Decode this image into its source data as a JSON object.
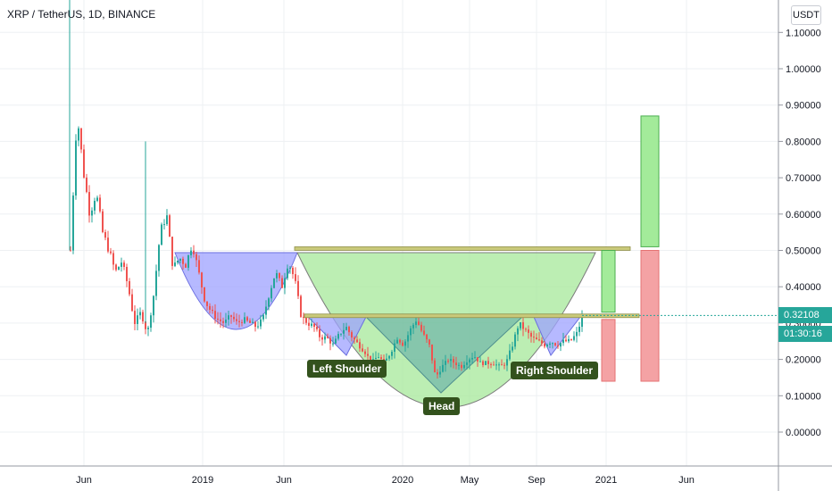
{
  "header": {
    "title": "XRP / TetherUS, 1D, BINANCE",
    "currency_badge": "USDT"
  },
  "price_scale": {
    "ticks": [
      "1.10000",
      "1.00000",
      "0.90000",
      "0.80000",
      "0.70000",
      "0.60000",
      "0.50000",
      "0.40000",
      "0.30000",
      "0.20000",
      "0.10000",
      "0.00000"
    ],
    "last_price": "0.32108",
    "countdown": "01:30:16",
    "last_price_color": "#26a69a"
  },
  "time_scale": {
    "labels": [
      "Jun",
      "2019",
      "Jun",
      "2020",
      "May",
      "Sep",
      "2021",
      "Jun"
    ]
  },
  "annotations": {
    "left_shoulder": "Left Shoulder",
    "head": "Head",
    "right_shoulder": "Right Shoulder"
  },
  "colors": {
    "up": "#26a69a",
    "down": "#ef5350",
    "cup_fill": "#9da1ff",
    "big_cup_fill": "#a5e899",
    "neckline": "#c9c97a",
    "label_bg": "#33521d",
    "target_green": "#a3eb9a",
    "target_red": "#f4a2a4"
  },
  "chart_data": {
    "type": "candlestick",
    "symbol": "XRP / TetherUS",
    "interval": "1D",
    "exchange": "BINANCE",
    "ylim": [
      -0.1,
      1.2
    ],
    "price_path": [
      [
        0,
        0.5
      ],
      [
        1,
        0.88
      ],
      [
        2,
        0.72
      ],
      [
        3,
        0.6
      ],
      [
        4,
        0.66
      ],
      [
        5,
        0.55
      ],
      [
        6,
        0.5
      ],
      [
        7,
        0.44
      ],
      [
        8,
        0.47
      ],
      [
        9,
        0.4
      ],
      [
        10,
        0.3
      ],
      [
        11,
        0.33
      ],
      [
        12,
        0.27
      ],
      [
        13,
        0.38
      ],
      [
        14,
        0.55
      ],
      [
        15,
        0.6
      ],
      [
        16,
        0.45
      ],
      [
        17,
        0.48
      ],
      [
        18,
        0.46
      ],
      [
        19,
        0.52
      ],
      [
        20,
        0.44
      ],
      [
        21,
        0.36
      ],
      [
        22,
        0.33
      ],
      [
        23,
        0.31
      ],
      [
        24,
        0.3
      ],
      [
        25,
        0.32
      ],
      [
        26,
        0.3
      ],
      [
        27,
        0.31
      ],
      [
        28,
        0.3
      ],
      [
        29,
        0.29
      ],
      [
        30,
        0.31
      ],
      [
        31,
        0.38
      ],
      [
        32,
        0.44
      ],
      [
        33,
        0.4
      ],
      [
        34,
        0.47
      ],
      [
        35,
        0.42
      ],
      [
        36,
        0.32
      ],
      [
        37,
        0.3
      ],
      [
        38,
        0.29
      ],
      [
        39,
        0.26
      ],
      [
        40,
        0.26
      ],
      [
        41,
        0.24
      ],
      [
        42,
        0.27
      ],
      [
        43,
        0.29
      ],
      [
        44,
        0.26
      ],
      [
        45,
        0.24
      ],
      [
        46,
        0.22
      ],
      [
        47,
        0.19
      ],
      [
        48,
        0.21
      ],
      [
        49,
        0.19
      ],
      [
        50,
        0.22
      ],
      [
        51,
        0.26
      ],
      [
        52,
        0.24
      ],
      [
        53,
        0.28
      ],
      [
        54,
        0.31
      ],
      [
        55,
        0.27
      ],
      [
        56,
        0.24
      ],
      [
        57,
        0.15
      ],
      [
        58,
        0.18
      ],
      [
        59,
        0.2
      ],
      [
        60,
        0.19
      ],
      [
        61,
        0.18
      ],
      [
        62,
        0.2
      ],
      [
        63,
        0.21
      ],
      [
        64,
        0.19
      ],
      [
        65,
        0.19
      ],
      [
        66,
        0.19
      ],
      [
        67,
        0.18
      ],
      [
        68,
        0.19
      ],
      [
        69,
        0.24
      ],
      [
        70,
        0.3
      ],
      [
        71,
        0.28
      ],
      [
        72,
        0.26
      ],
      [
        73,
        0.25
      ],
      [
        74,
        0.24
      ],
      [
        75,
        0.25
      ],
      [
        76,
        0.24
      ],
      [
        77,
        0.25
      ],
      [
        78,
        0.25
      ],
      [
        79,
        0.27
      ],
      [
        80,
        0.32
      ]
    ],
    "patterns": {
      "neckline_upper": 0.5,
      "neckline_lower": 0.32,
      "left_shoulder_low": 0.22,
      "head_low": 0.11,
      "right_shoulder_low": 0.22
    },
    "targets": [
      {
        "green": [
          0.33,
          0.5
        ],
        "red": [
          0.14,
          0.31
        ]
      },
      {
        "green": [
          0.51,
          0.87
        ],
        "red": [
          0.14,
          0.5
        ]
      }
    ]
  }
}
